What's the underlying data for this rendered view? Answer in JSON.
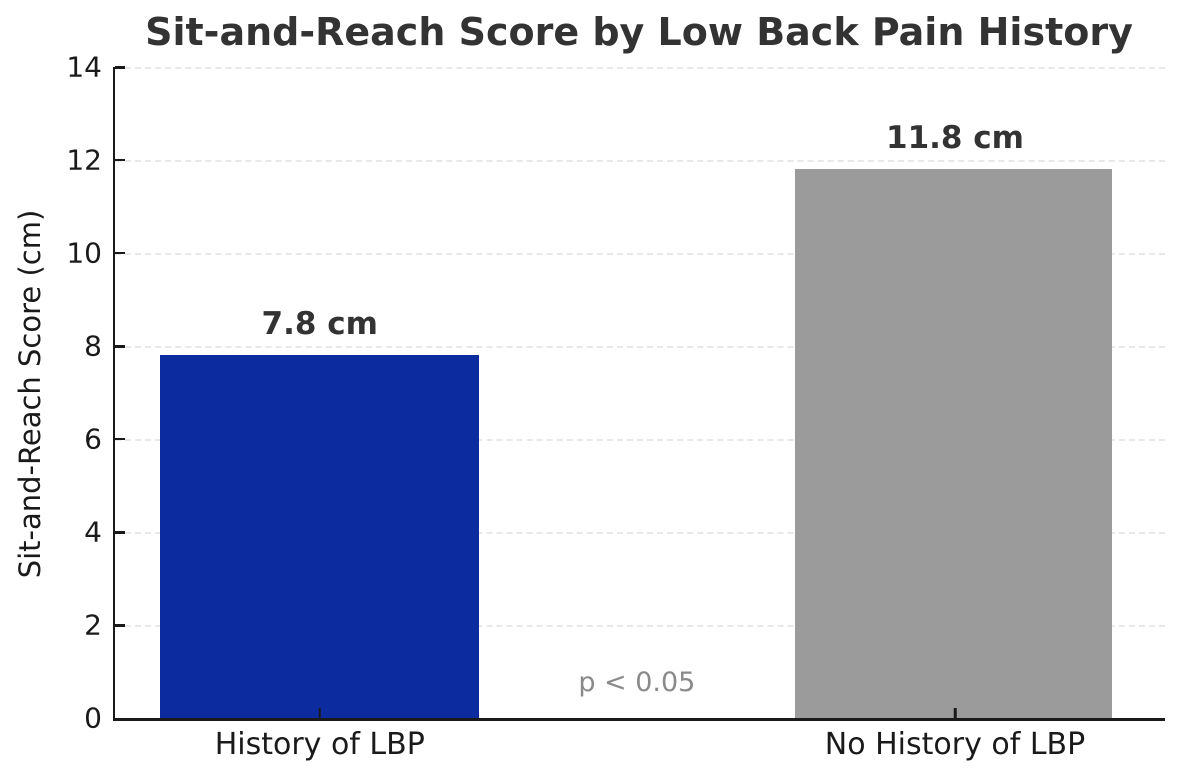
{
  "title": "Sit-and-Reach Score by Low Back Pain History",
  "chart_data": {
    "type": "bar",
    "title": "Sit-and-Reach Score by Low Back Pain History",
    "categories": [
      "History of LBP",
      "No History of LBP"
    ],
    "values": [
      7.8,
      11.8
    ],
    "value_labels": [
      "7.8 cm",
      "11.8 cm"
    ],
    "bar_colors": [
      "#0b2b9e",
      "#9b9b9b"
    ],
    "xlabel": "",
    "ylabel": "Sit-and-Reach Score (cm)",
    "ylim": [
      0,
      14
    ],
    "yticks": [
      0,
      2,
      4,
      6,
      8,
      10,
      12,
      14
    ],
    "grid": "horizontal-dashed",
    "legend": "none",
    "annotation": "p < 0.05",
    "annotation_color": "#8a8a8a",
    "spine_color": "#1a1a1a",
    "gridline_color": "#e8e8e8",
    "title_color": "#333333",
    "tick_label_color": "#1a1a1a"
  }
}
